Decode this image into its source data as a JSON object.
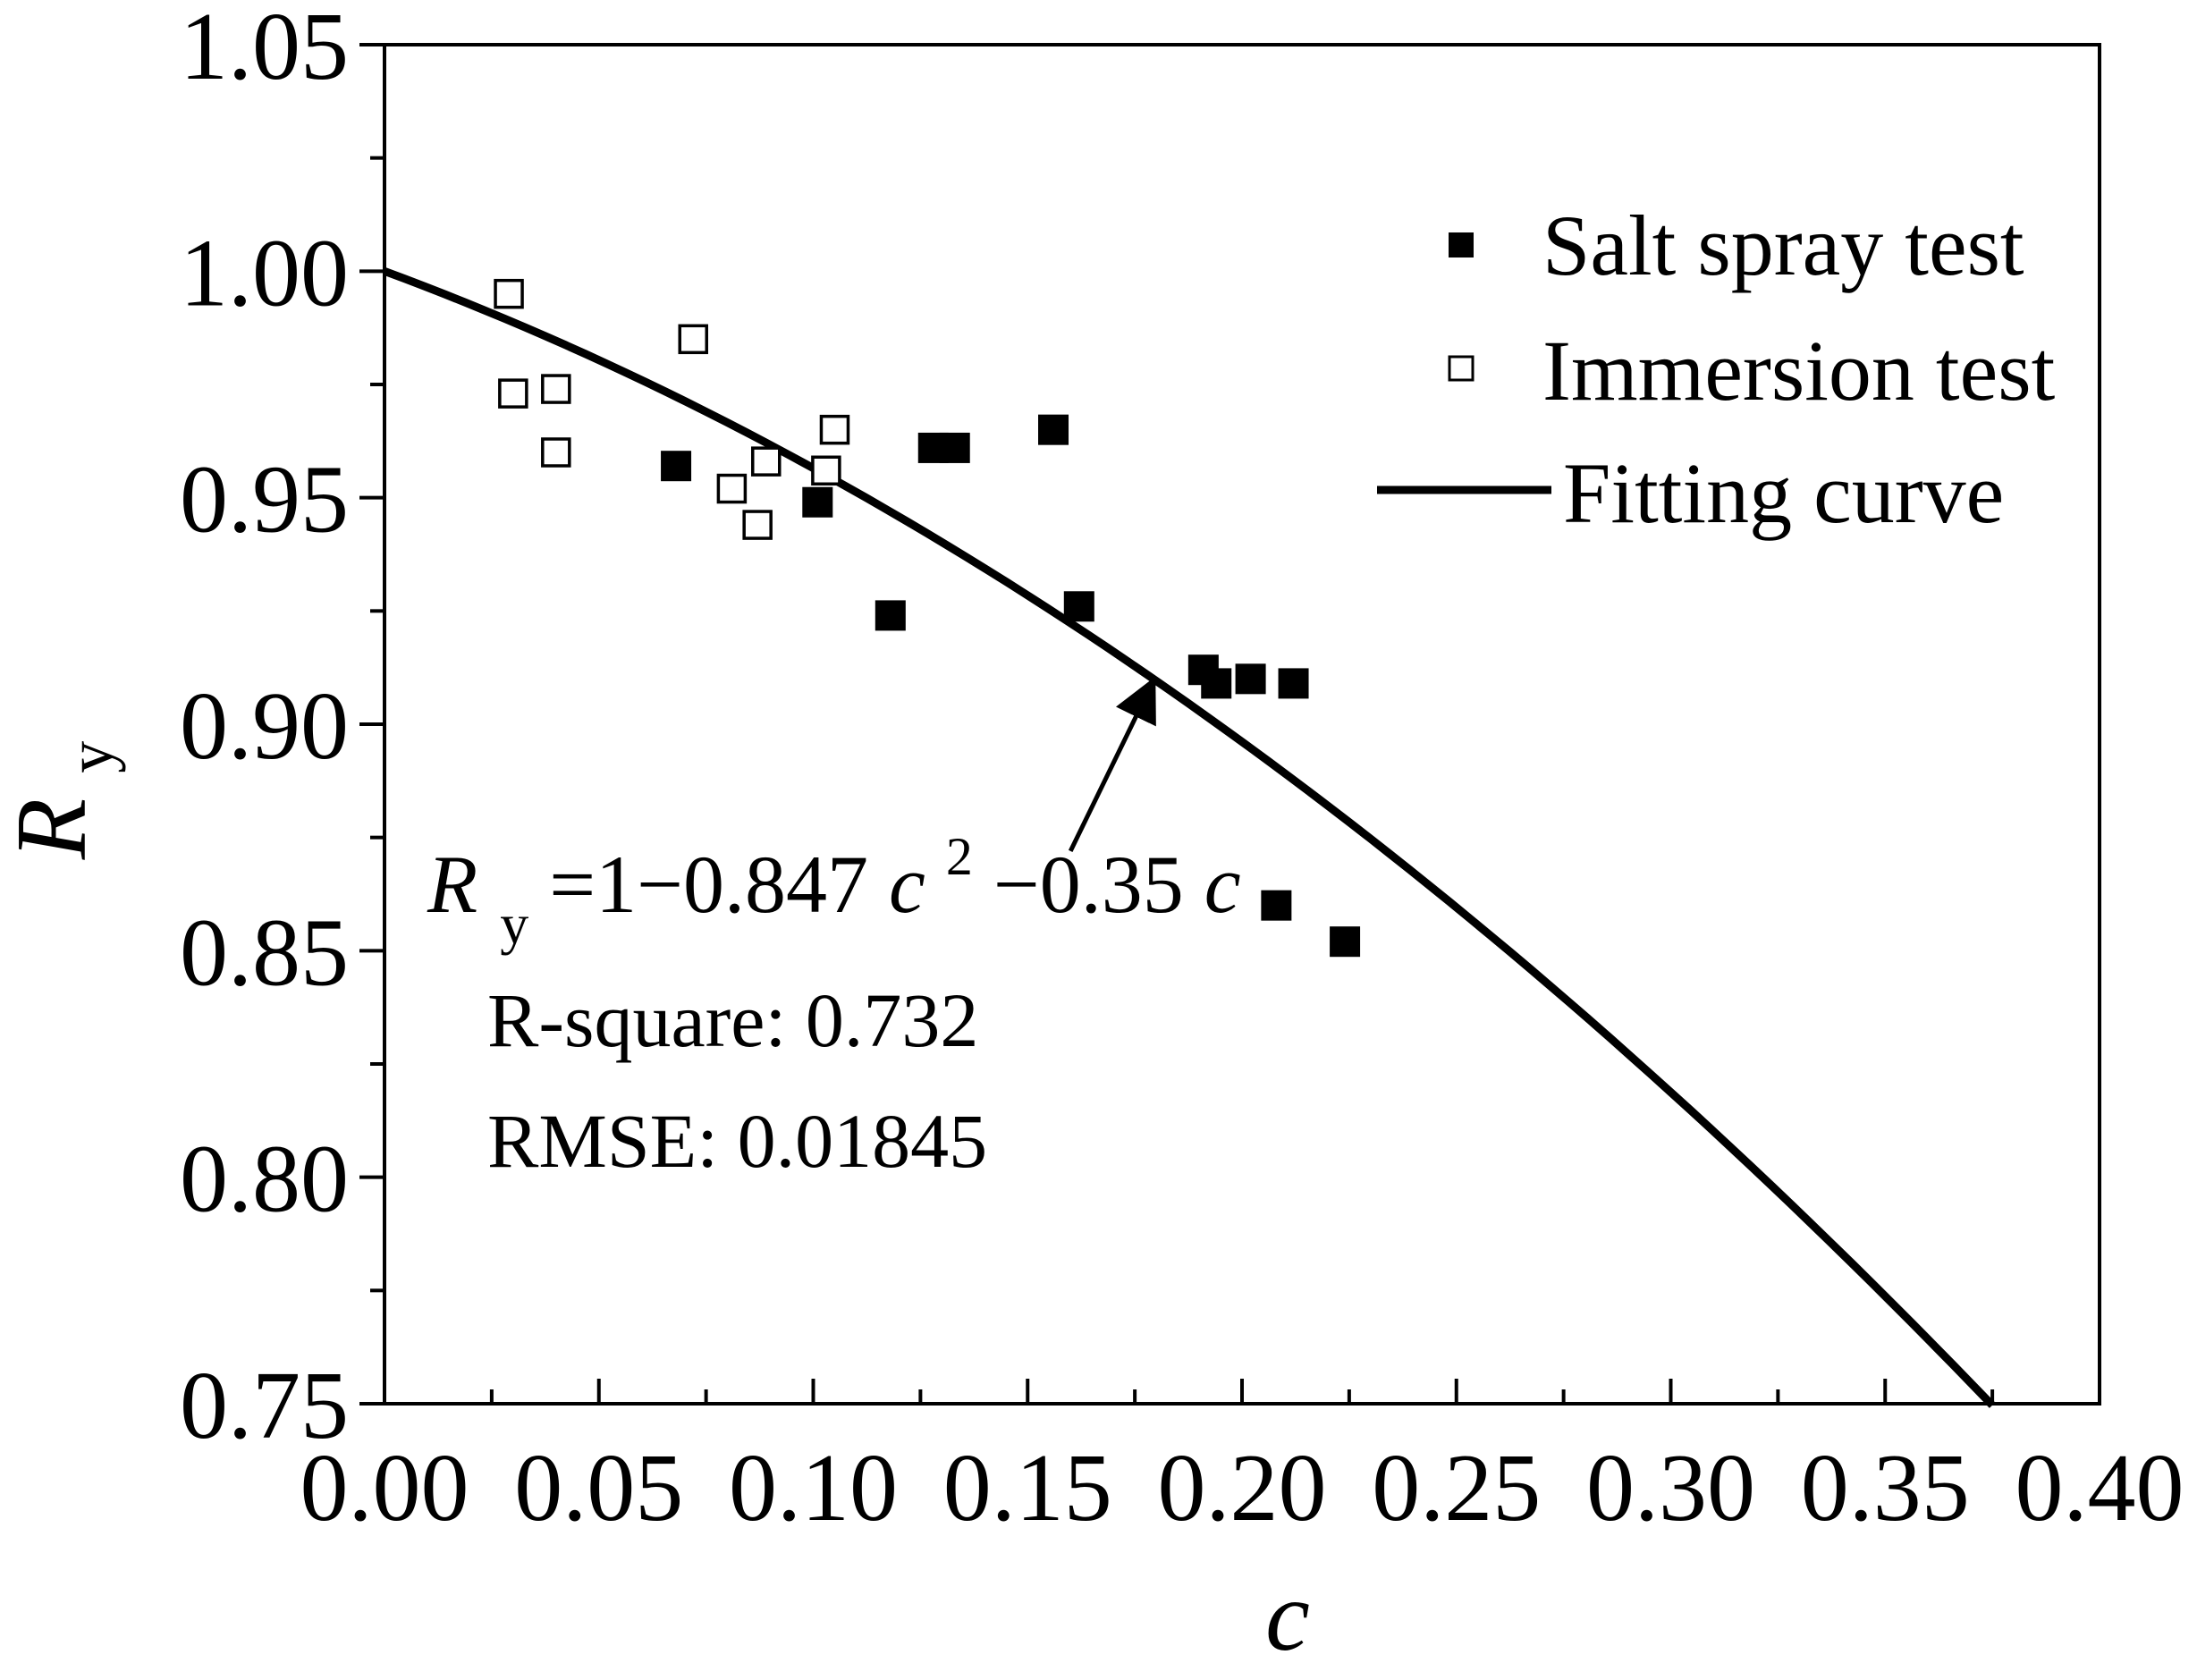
{
  "chart_data": {
    "type": "scatter",
    "title": "",
    "xlabel": "c",
    "ylabel": {
      "main": "R",
      "sub": "y"
    },
    "xlim": [
      0.0,
      0.4
    ],
    "ylim": [
      0.75,
      1.05
    ],
    "x_ticks": [
      "0.00",
      "0.05",
      "0.10",
      "0.15",
      "0.20",
      "0.25",
      "0.30",
      "0.35",
      "0.40"
    ],
    "y_ticks": [
      "0.75",
      "0.80",
      "0.85",
      "0.90",
      "0.95",
      "1.00",
      "1.05"
    ],
    "grid": false,
    "legend_position": "top-right",
    "series": [
      {
        "name": "Salt spray test",
        "marker": "filled-square",
        "points": [
          [
            0.068,
            0.957
          ],
          [
            0.101,
            0.949
          ],
          [
            0.118,
            0.924
          ],
          [
            0.128,
            0.961
          ],
          [
            0.133,
            0.961
          ],
          [
            0.156,
            0.965
          ],
          [
            0.162,
            0.926
          ],
          [
            0.191,
            0.912
          ],
          [
            0.194,
            0.909
          ],
          [
            0.202,
            0.91
          ],
          [
            0.212,
            0.909
          ],
          [
            0.208,
            0.86
          ],
          [
            0.224,
            0.852
          ]
        ]
      },
      {
        "name": "Immersion test",
        "marker": "open-square",
        "points": [
          [
            0.029,
            0.995
          ],
          [
            0.03,
            0.973
          ],
          [
            0.04,
            0.974
          ],
          [
            0.04,
            0.96
          ],
          [
            0.072,
            0.985
          ],
          [
            0.081,
            0.952
          ],
          [
            0.087,
            0.944
          ],
          [
            0.089,
            0.958
          ],
          [
            0.103,
            0.956
          ],
          [
            0.105,
            0.965
          ]
        ]
      },
      {
        "name": "Fitting curve",
        "type": "line",
        "equation": {
          "a": 0.847,
          "b": 0.35
        },
        "x_range": [
          0.0,
          0.375
        ]
      }
    ],
    "annotations": {
      "equation": {
        "lhs": "R",
        "lhs_sub": "y",
        "rhs_a": "=1−0.847",
        "var1": "c",
        "sup": "2",
        "rhs_b": "−0.35",
        "var2": "c"
      },
      "arrow_from": [
        0.16,
        0.872
      ],
      "arrow_to": [
        0.178,
        0.907
      ],
      "r_square": "R-square: 0.732",
      "rmse": "RMSE: 0.01845"
    }
  }
}
